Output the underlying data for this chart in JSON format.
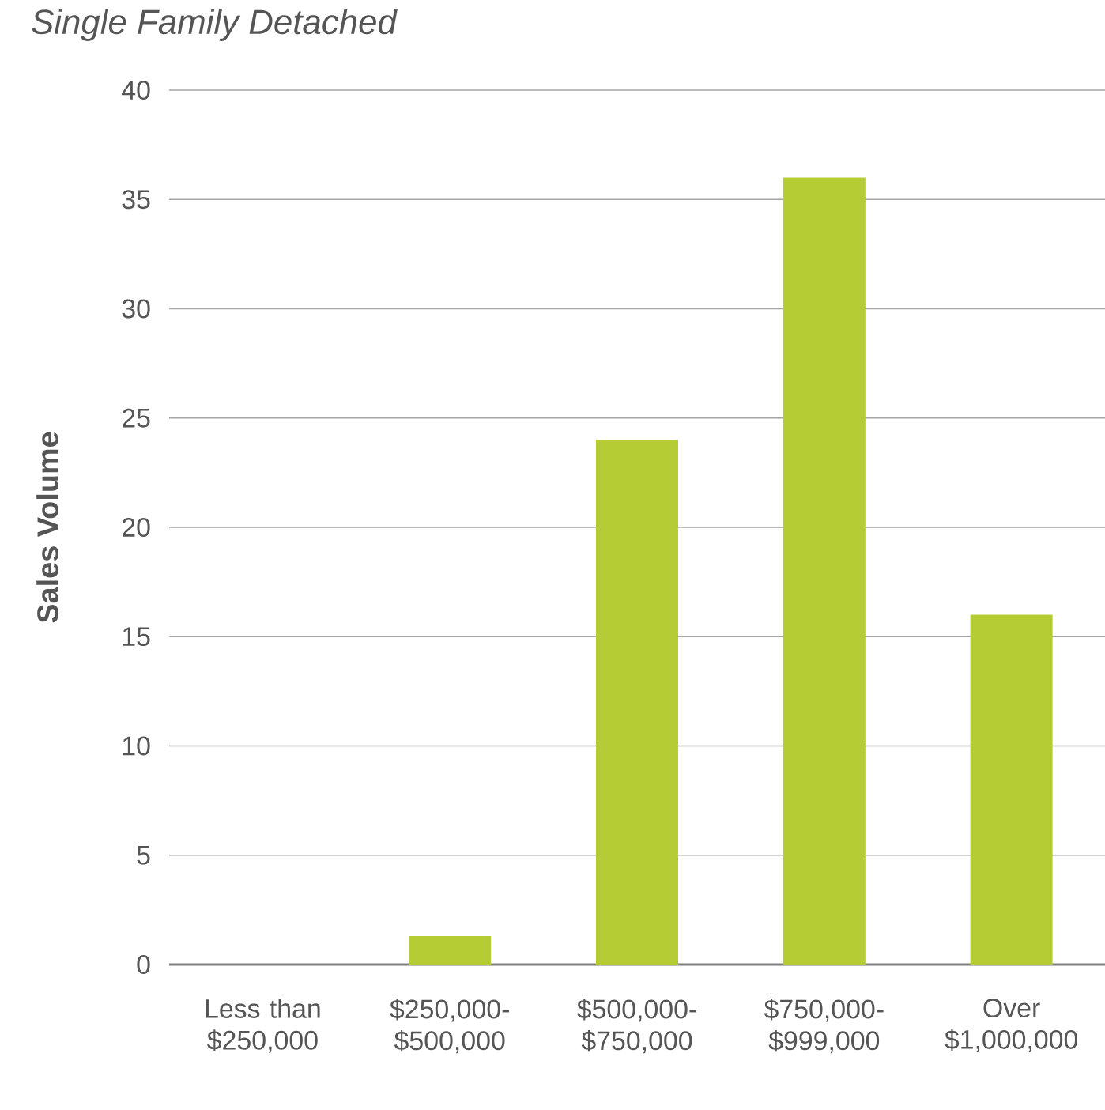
{
  "chart_data": {
    "type": "bar",
    "title": "Single Family Detached",
    "ylabel": "Sales Volume",
    "categories": [
      "Less than $250,000",
      "$250,000-$500,000",
      "$500,000-$750,000",
      "$750,000-$999,000",
      "Over $1,000,000"
    ],
    "values": [
      0,
      1.3,
      24,
      36,
      16
    ],
    "color": "#b5cc34",
    "ylim": [
      0,
      40
    ],
    "yticks": [
      0,
      5,
      10,
      15,
      20,
      25,
      30,
      35,
      40
    ],
    "grid": "y"
  }
}
